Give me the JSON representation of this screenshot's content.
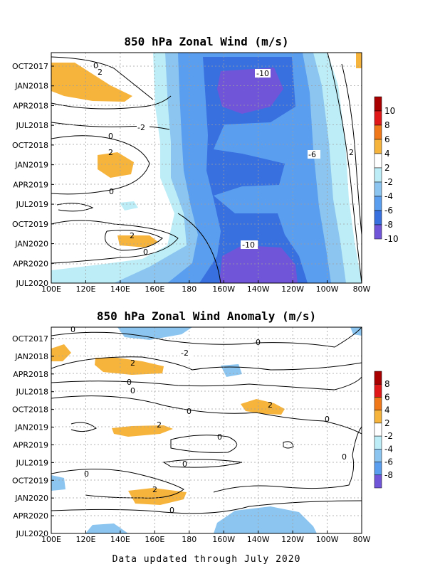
{
  "footer": "Data updated through July 2020",
  "chart_data": [
    {
      "type": "heatmap",
      "title": "850 hPa Zonal Wind (m/s)",
      "x_ticks": [
        "100E",
        "120E",
        "140E",
        "160E",
        "180",
        "160W",
        "140W",
        "120W",
        "100W",
        "80W"
      ],
      "y_ticks": [
        "OCT2017",
        "JAN2018",
        "APR2018",
        "JUL2018",
        "OCT2018",
        "JAN2019",
        "APR2019",
        "JUL2019",
        "OCT2019",
        "JAN2020",
        "APR2020",
        "JUL2020"
      ],
      "colorbar_labels": [
        "10",
        "8",
        "6",
        "4",
        "2",
        "-2",
        "-4",
        "-6",
        "-8",
        "-10"
      ],
      "contour_labels": [
        "0",
        "2",
        "-10",
        "-2",
        "0",
        "2",
        "-6",
        "2",
        "0",
        "2",
        "0",
        "-10"
      ],
      "grid": true
    },
    {
      "type": "heatmap",
      "title": "850 hPa Zonal Wind Anomaly (m/s)",
      "x_ticks": [
        "100E",
        "120E",
        "140E",
        "160E",
        "180",
        "160W",
        "140W",
        "120W",
        "100W",
        "80W"
      ],
      "y_ticks": [
        "OCT2017",
        "JAN2018",
        "APR2018",
        "JUL2018",
        "OCT2018",
        "JAN2019",
        "APR2019",
        "JUL2019",
        "OCT2019",
        "JAN2020",
        "APR2020",
        "JUL2020"
      ],
      "colorbar_labels": [
        "8",
        "6",
        "4",
        "2",
        "-2",
        "-4",
        "-6",
        "-8"
      ],
      "contour_labels": [
        "0",
        "2",
        "-2",
        "0",
        "0",
        "0",
        "2",
        "0",
        "2",
        "0",
        "0",
        "0",
        "0",
        "0",
        "2",
        "0"
      ],
      "grid": true
    }
  ],
  "colors": {
    "pos10": "#a80000",
    "pos8": "#e01818",
    "pos6": "#f07818",
    "pos4": "#f7b43c",
    "neutral": "#ffffff",
    "neg2": "#bdeef7",
    "neg4": "#8cc6f0",
    "neg6": "#5a9ef0",
    "neg8": "#3870e0",
    "neg10": "#7055d8"
  }
}
